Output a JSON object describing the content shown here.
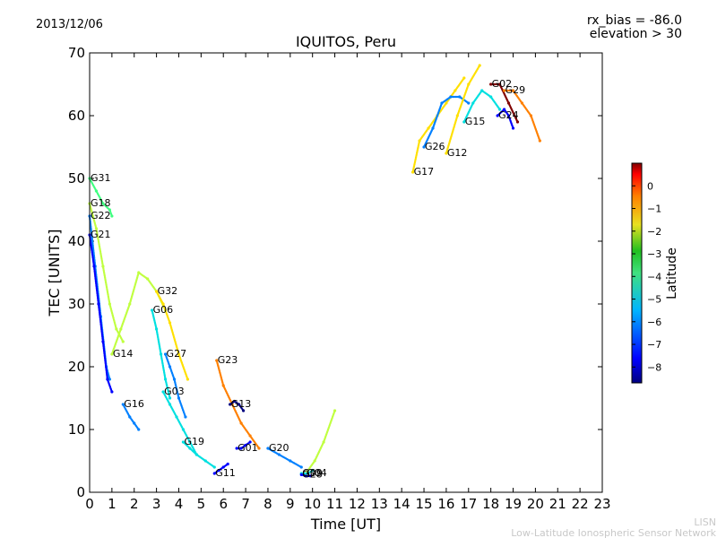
{
  "header": {
    "date": "2013/12/06",
    "rx_bias": "rx_bias = -86.0",
    "elevation": "elevation > 30"
  },
  "footer": {
    "line1": "LISN",
    "line2": "Low-Latitude Ionospheric Sensor Network"
  },
  "chart_data": {
    "type": "scatter",
    "title": "IQUITOS, Peru",
    "xlabel": "Time [UT]",
    "ylabel": "TEC [UNITS]",
    "xlim": [
      0,
      23
    ],
    "ylim": [
      0,
      70
    ],
    "xticks": [
      "0",
      "1",
      "2",
      "3",
      "4",
      "5",
      "6",
      "7",
      "8",
      "9",
      "10",
      "11",
      "12",
      "13",
      "14",
      "15",
      "16",
      "17",
      "18",
      "19",
      "20",
      "21",
      "22",
      "23"
    ],
    "yticks": [
      "0",
      "10",
      "20",
      "30",
      "40",
      "50",
      "60",
      "70"
    ],
    "grid": false,
    "colorbar": {
      "label": "Latitude",
      "range": [
        -8.7,
        1.0
      ],
      "ticks": [
        "0",
        "−1",
        "−2",
        "−3",
        "−4",
        "−5",
        "−6",
        "−7",
        "−8"
      ],
      "colors": [
        "#000080",
        "#0000ff",
        "#0080ff",
        "#00e0e0",
        "#40ff80",
        "#c0ff40",
        "#ffe000",
        "#ff8000",
        "#ff0000",
        "#800000"
      ]
    },
    "series": [
      {
        "name": "G31",
        "lat": -4.0,
        "x": [
          0.0,
          0.3,
          0.6,
          0.9,
          1.0
        ],
        "y": [
          50,
          48,
          46,
          45,
          44
        ]
      },
      {
        "name": "G18",
        "lat": -2.8,
        "x": [
          0.0,
          0.3,
          0.6,
          0.9,
          1.2,
          1.5
        ],
        "y": [
          46,
          42,
          36,
          30,
          26,
          24
        ]
      },
      {
        "name": "G22",
        "lat": -6.5,
        "x": [
          0.0,
          0.25,
          0.5,
          0.75,
          0.9
        ],
        "y": [
          44,
          36,
          28,
          20,
          18
        ]
      },
      {
        "name": "G21",
        "lat": -7.8,
        "x": [
          0.0,
          0.2,
          0.4,
          0.6,
          0.8,
          1.0
        ],
        "y": [
          41,
          36,
          30,
          24,
          18,
          16
        ]
      },
      {
        "name": "G14",
        "lat": -3.5,
        "x": [
          1.0,
          1.4,
          1.8,
          2.2,
          2.6,
          3.0,
          3.4
        ],
        "y": [
          22,
          26,
          30,
          35,
          34,
          32,
          29
        ]
      },
      {
        "name": "G16",
        "lat": -6.5,
        "x": [
          1.5,
          1.8,
          2.0,
          2.2
        ],
        "y": [
          14,
          12,
          11,
          10
        ]
      },
      {
        "name": "G06",
        "lat": -6.0,
        "x": [
          2.8,
          3.0,
          3.2,
          3.4,
          3.6
        ],
        "y": [
          29,
          26,
          22,
          18,
          15
        ]
      },
      {
        "name": "G32",
        "lat": -2.5,
        "x": [
          3.0,
          3.3,
          3.6,
          4.0,
          4.4
        ],
        "y": [
          32,
          30,
          27,
          22,
          18
        ]
      },
      {
        "name": "G27",
        "lat": -7.0,
        "x": [
          3.4,
          3.6,
          3.8,
          4.0,
          4.3
        ],
        "y": [
          22,
          20,
          18,
          15,
          12
        ]
      },
      {
        "name": "G03",
        "lat": -6.0,
        "x": [
          3.3,
          3.6,
          3.9,
          4.2,
          4.5,
          4.8
        ],
        "y": [
          16,
          14,
          12,
          10,
          8,
          6
        ]
      },
      {
        "name": "G19",
        "lat": -5.0,
        "x": [
          4.2,
          4.5,
          4.8,
          5.2,
          5.6
        ],
        "y": [
          8,
          7,
          6,
          5,
          4
        ]
      },
      {
        "name": "G23",
        "lat": -1.5,
        "x": [
          5.7,
          6.0,
          6.4,
          6.8,
          7.2,
          7.6
        ],
        "y": [
          21,
          17,
          14,
          11,
          9,
          7
        ]
      },
      {
        "name": "G13",
        "lat": -8.3,
        "x": [
          6.3,
          6.5,
          6.7,
          6.9
        ],
        "y": [
          14,
          14.5,
          14,
          13
        ]
      },
      {
        "name": "G11",
        "lat": -8.0,
        "x": [
          5.6,
          5.8,
          6.0,
          6.2
        ],
        "y": [
          3,
          3.5,
          4,
          4.5
        ]
      },
      {
        "name": "G01",
        "lat": -7.5,
        "x": [
          6.6,
          6.8,
          7.0,
          7.2
        ],
        "y": [
          7,
          7,
          7.5,
          8
        ]
      },
      {
        "name": "G20",
        "lat": -6.5,
        "x": [
          8.0,
          8.5,
          9.0,
          9.5
        ],
        "y": [
          7,
          6,
          5,
          4
        ]
      },
      {
        "name": "G04",
        "lat": -3.5,
        "x": [
          9.7,
          10.1,
          10.5,
          11.0
        ],
        "y": [
          3,
          5,
          8,
          13
        ]
      },
      {
        "name": "G09",
        "lat": -5.5,
        "x": [
          9.5,
          9.8,
          10.0
        ],
        "y": [
          3,
          3,
          3.5
        ]
      },
      {
        "name": "G28",
        "lat": -8.0,
        "x": [
          9.5,
          9.7,
          9.9
        ],
        "y": [
          2.8,
          2.6,
          2.6
        ]
      },
      {
        "name": "G17",
        "lat": -1.8,
        "x": [
          14.5,
          14.8,
          15.2,
          15.6,
          16.0,
          16.4,
          16.8
        ],
        "y": [
          51,
          56,
          58,
          60,
          62,
          64,
          66
        ]
      },
      {
        "name": "G26",
        "lat": -7.0,
        "x": [
          15.0,
          15.4,
          15.8,
          16.2,
          16.6,
          17.0
        ],
        "y": [
          55,
          58,
          62,
          63,
          63,
          62
        ]
      },
      {
        "name": "G12",
        "lat": -2.5,
        "x": [
          16.0,
          16.5,
          17.0,
          17.5
        ],
        "y": [
          54,
          60,
          65,
          68
        ]
      },
      {
        "name": "G15",
        "lat": -5.0,
        "x": [
          16.8,
          17.2,
          17.6,
          18.0,
          18.4
        ],
        "y": [
          59,
          62,
          64,
          63,
          61
        ]
      },
      {
        "name": "G02",
        "lat": 0.8,
        "x": [
          18.0,
          18.4,
          18.8,
          19.2
        ],
        "y": [
          65,
          65,
          62,
          59
        ]
      },
      {
        "name": "G29",
        "lat": -1.0,
        "x": [
          18.6,
          19.0,
          19.4,
          19.8,
          20.2
        ],
        "y": [
          64,
          64,
          62,
          60,
          56
        ]
      },
      {
        "name": "G24",
        "lat": -7.5,
        "x": [
          18.3,
          18.6,
          18.8,
          19.0
        ],
        "y": [
          60,
          61,
          60,
          58
        ]
      }
    ]
  }
}
